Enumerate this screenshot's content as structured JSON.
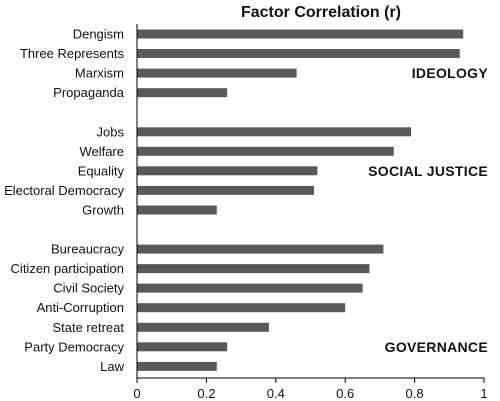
{
  "chart_data": {
    "type": "bar",
    "orientation": "horizontal",
    "title": "Factor Correlation (r)",
    "xlim": [
      0,
      1
    ],
    "x_ticks": [
      "0",
      "0.2",
      "0.4",
      "0.6",
      "0.8",
      "1"
    ],
    "bar_color": "#595959",
    "grid": false,
    "groups": [
      {
        "name": "IDEOLOGY",
        "categories": [
          "Dengism",
          "Three Represents",
          "Marxism",
          "Propaganda"
        ],
        "values": [
          0.94,
          0.93,
          0.46,
          0.26
        ]
      },
      {
        "name": "SOCIAL JUSTICE",
        "categories": [
          "Jobs",
          "Welfare",
          "Equality",
          "Electoral Democracy",
          "Growth"
        ],
        "values": [
          0.79,
          0.74,
          0.52,
          0.51,
          0.23
        ]
      },
      {
        "name": "GOVERNANCE",
        "categories": [
          "Bureaucracy",
          "Citizen participation",
          "Civil Society",
          "Anti-Corruption",
          "State retreat",
          "Party Democracy",
          "Law"
        ],
        "values": [
          0.71,
          0.67,
          0.65,
          0.6,
          0.38,
          0.26,
          0.23
        ]
      }
    ]
  }
}
